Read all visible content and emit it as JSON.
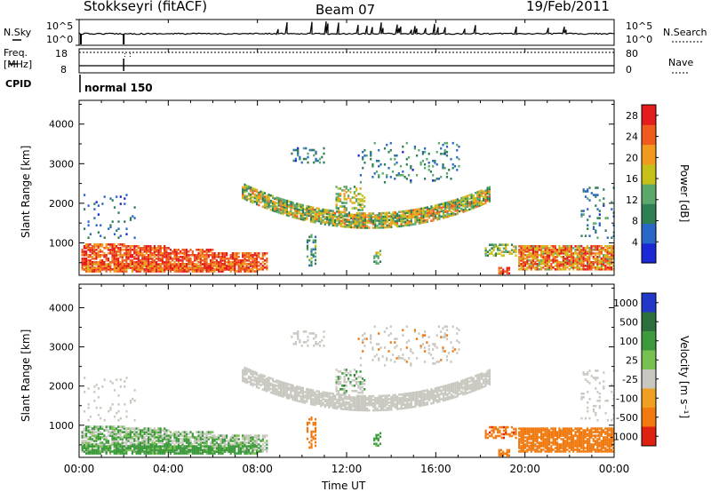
{
  "header": {
    "station": "Stokkseyri (fitACF)",
    "beam": "Beam 07",
    "date": "19/Feb/2011"
  },
  "noise_panel": {
    "left_label": "N.Sky",
    "right_label": "N.Search",
    "left_ticks": [
      "10^5",
      "10^0"
    ],
    "right_ticks": [
      "10^5",
      "10^0"
    ]
  },
  "freq_panel": {
    "left_label_1": "Freq.",
    "left_label_2": "[MHz]",
    "left_ticks": [
      "18",
      "8"
    ],
    "right_label": "Nave",
    "right_ticks": [
      "80",
      "0"
    ]
  },
  "cpid": {
    "label": "CPID",
    "mode": "normal 150"
  },
  "colors": {
    "power_scale": [
      "#1b28d6",
      "#2a68c8",
      "#2f7f55",
      "#5aa86a",
      "#c6c018",
      "#f29a1e",
      "#ef5a1e",
      "#e41c1c"
    ],
    "velocity_scale": [
      "#2138c8",
      "#2c6e3c",
      "#3c9a3c",
      "#78c050",
      "#c8c8c0",
      "#f0a020",
      "#f07a10",
      "#e02010"
    ]
  },
  "chart_data": [
    {
      "type": "heatmap",
      "name": "power",
      "ylabel": "Slant Range [km]",
      "ylim": [
        180,
        4600
      ],
      "xlim_hours": [
        0,
        24
      ],
      "y_ticks": [
        "1000",
        "2000",
        "3000",
        "4000"
      ],
      "x_ticks": [
        "00:00",
        "04:00",
        "08:00",
        "12:00",
        "16:00",
        "20:00",
        "00:00"
      ],
      "colorbar": {
        "label": "Power [dB]",
        "ticks": [
          "4",
          "8",
          "12",
          "16",
          "20",
          "24",
          "28"
        ],
        "range": [
          0,
          30
        ]
      }
    },
    {
      "type": "heatmap",
      "name": "velocity",
      "ylabel": "Slant Range [km]",
      "ylim": [
        180,
        4600
      ],
      "xlim_hours": [
        0,
        24
      ],
      "y_ticks": [
        "1000",
        "2000",
        "3000",
        "4000"
      ],
      "x_ticks": [
        "00:00",
        "04:00",
        "08:00",
        "12:00",
        "16:00",
        "20:00",
        "00:00"
      ],
      "xlabel": "Time UT",
      "colorbar": {
        "label": "Velocity [m s⁻¹]",
        "ticks": [
          "1000",
          "500",
          "100",
          "25",
          "-25",
          "-100",
          "-500",
          "-1000"
        ]
      }
    }
  ]
}
